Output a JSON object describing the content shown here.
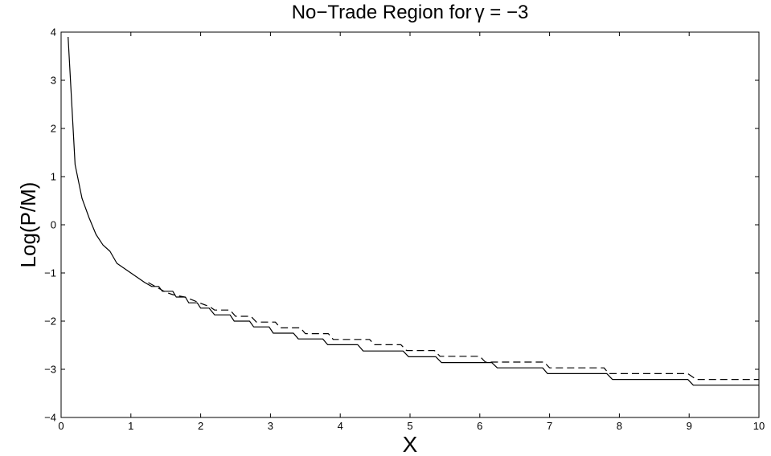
{
  "chart_data": {
    "type": "line",
    "title_text": "No−Trade Region for",
    "title_symbol": "γ = −3",
    "xlabel": "X",
    "ylabel": "Log(P/M)",
    "xlim": [
      0,
      10
    ],
    "ylim": [
      -4,
      4
    ],
    "xticks": [
      0,
      1,
      2,
      3,
      4,
      5,
      6,
      7,
      8,
      9,
      10
    ],
    "yticks": [
      -4,
      -3,
      -2,
      -1,
      0,
      1,
      2,
      3,
      4
    ],
    "xtick_labels": [
      "0",
      "1",
      "2",
      "3",
      "4",
      "5",
      "6",
      "7",
      "8",
      "9",
      "10"
    ],
    "ytick_labels": [
      "−4",
      "−3",
      "−2",
      "−1",
      "0",
      "1",
      "2",
      "3",
      "4"
    ],
    "grid": false,
    "series": [
      {
        "style": "solid",
        "points": [
          [
            0.1,
            3.9
          ],
          [
            0.2,
            1.25
          ],
          [
            0.3,
            0.55
          ],
          [
            0.4,
            0.15
          ],
          [
            0.5,
            -0.2
          ],
          [
            0.6,
            -0.42
          ],
          [
            0.7,
            -0.55
          ],
          [
            0.8,
            -0.8
          ],
          [
            1.0,
            -1.0
          ],
          [
            1.1,
            -1.1
          ],
          [
            1.2,
            -1.2
          ],
          [
            1.3,
            -1.28
          ],
          [
            1.4,
            -1.28
          ],
          [
            1.45,
            -1.38
          ],
          [
            1.6,
            -1.38
          ],
          [
            1.65,
            -1.5
          ],
          [
            1.78,
            -1.5
          ],
          [
            1.83,
            -1.62
          ],
          [
            1.95,
            -1.62
          ],
          [
            2.0,
            -1.73
          ],
          [
            2.12,
            -1.73
          ],
          [
            2.2,
            -1.87
          ],
          [
            2.42,
            -1.87
          ],
          [
            2.48,
            -2.0
          ],
          [
            2.7,
            -2.0
          ],
          [
            2.76,
            -2.12
          ],
          [
            2.98,
            -2.12
          ],
          [
            3.04,
            -2.25
          ],
          [
            3.33,
            -2.25
          ],
          [
            3.4,
            -2.37
          ],
          [
            3.75,
            -2.37
          ],
          [
            3.82,
            -2.49
          ],
          [
            4.25,
            -2.49
          ],
          [
            4.33,
            -2.62
          ],
          [
            4.9,
            -2.62
          ],
          [
            4.98,
            -2.74
          ],
          [
            5.37,
            -2.74
          ],
          [
            5.45,
            -2.86
          ],
          [
            6.17,
            -2.86
          ],
          [
            6.25,
            -2.97
          ],
          [
            6.9,
            -2.97
          ],
          [
            6.97,
            -3.09
          ],
          [
            7.82,
            -3.09
          ],
          [
            7.9,
            -3.21
          ],
          [
            8.98,
            -3.21
          ],
          [
            9.06,
            -3.33
          ],
          [
            10.0,
            -3.33
          ]
        ]
      },
      {
        "style": "dashed",
        "points": [
          [
            1.25,
            -1.2
          ],
          [
            1.5,
            -1.4
          ],
          [
            1.6,
            -1.45
          ],
          [
            1.77,
            -1.5
          ],
          [
            1.88,
            -1.56
          ],
          [
            2.0,
            -1.63
          ],
          [
            2.13,
            -1.7
          ],
          [
            2.2,
            -1.77
          ],
          [
            2.42,
            -1.77
          ],
          [
            2.5,
            -1.9
          ],
          [
            2.72,
            -1.9
          ],
          [
            2.8,
            -2.02
          ],
          [
            3.07,
            -2.02
          ],
          [
            3.14,
            -2.14
          ],
          [
            3.43,
            -2.14
          ],
          [
            3.5,
            -2.26
          ],
          [
            3.83,
            -2.26
          ],
          [
            3.9,
            -2.38
          ],
          [
            4.42,
            -2.38
          ],
          [
            4.49,
            -2.49
          ],
          [
            4.87,
            -2.49
          ],
          [
            4.95,
            -2.61
          ],
          [
            5.35,
            -2.61
          ],
          [
            5.43,
            -2.73
          ],
          [
            6.0,
            -2.73
          ],
          [
            6.08,
            -2.85
          ],
          [
            6.92,
            -2.85
          ],
          [
            7.0,
            -2.97
          ],
          [
            7.78,
            -2.97
          ],
          [
            7.85,
            -3.09
          ],
          [
            8.98,
            -3.09
          ],
          [
            9.1,
            -3.21
          ],
          [
            10.0,
            -3.21
          ]
        ]
      }
    ]
  }
}
